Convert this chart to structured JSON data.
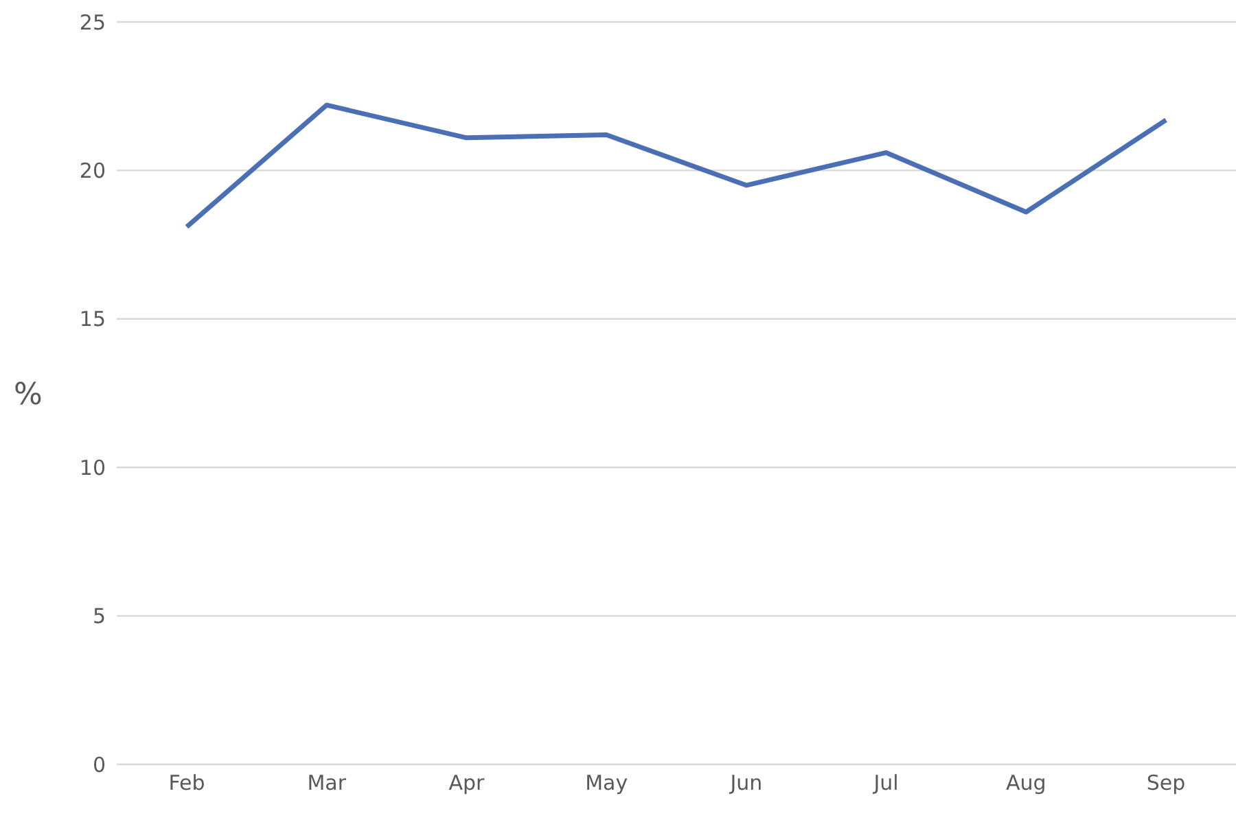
{
  "chart_data": {
    "type": "line",
    "ylabel": "%",
    "categories": [
      "Feb",
      "Mar",
      "Apr",
      "May",
      "Jun",
      "Jul",
      "Aug",
      "Sep"
    ],
    "series": [
      {
        "color": "#4a6fb5",
        "values": [
          18.1,
          22.2,
          21.1,
          21.2,
          19.5,
          20.6,
          18.6,
          21.7
        ]
      }
    ],
    "ylim": [
      0,
      25
    ],
    "yticks": [
      0,
      5,
      10,
      15,
      20,
      25
    ],
    "grid": "y",
    "marker": "none",
    "line_style": "solid"
  }
}
